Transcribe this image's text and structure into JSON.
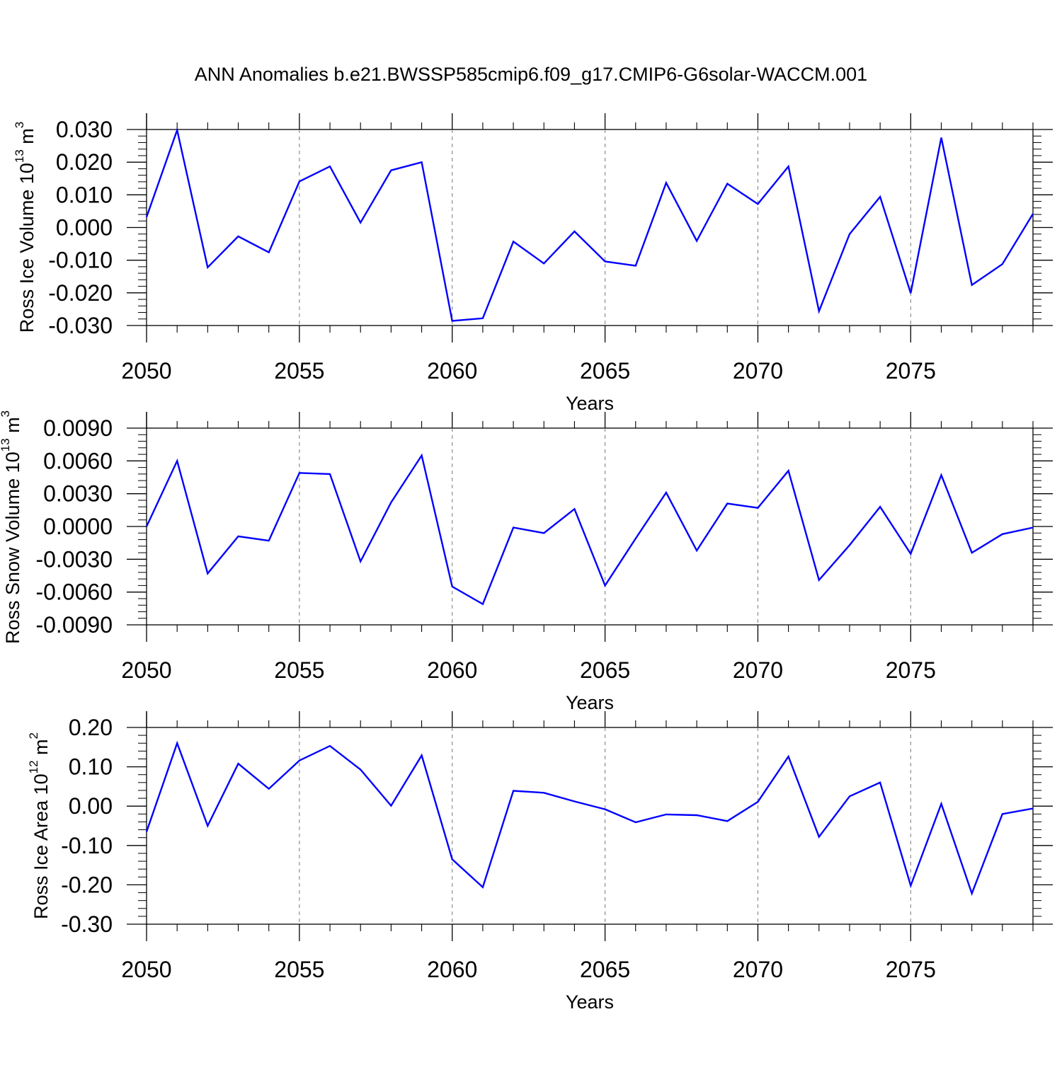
{
  "title": "ANN Anomalies b.e21.BWSSP585cmip6.f09_g17.CMIP6-G6solar-WACCM.001",
  "colors": {
    "series": "#0000ff",
    "axis": "#000000",
    "grid": "#8c8c8c"
  },
  "chart_data": [
    {
      "type": "line",
      "ylabel": "Ross Ice Volume",
      "yunit": "10",
      "yunit_exp": "13",
      "yunit_tail": " m",
      "yunit_pow": "3",
      "xlabel": "Years",
      "xlim": [
        2050,
        2079
      ],
      "ylim": [
        -0.03,
        0.03
      ],
      "ytick_values": [
        0.03,
        0.02,
        0.01,
        0.0,
        -0.01,
        -0.02,
        -0.03
      ],
      "yticks": [
        "0.030",
        "0.020",
        "0.010",
        "0.000",
        "-0.010",
        "-0.020",
        "-0.030"
      ],
      "xticks": [
        "2050",
        "2055",
        "2060",
        "2065",
        "2070",
        "2075"
      ],
      "grid": "dashed vertical at major x ticks",
      "x": [
        2050,
        2051,
        2052,
        2053,
        2054,
        2055,
        2056,
        2057,
        2058,
        2059,
        2060,
        2061,
        2062,
        2063,
        2064,
        2065,
        2066,
        2067,
        2068,
        2069,
        2070,
        2071,
        2072,
        2073,
        2074,
        2075,
        2076,
        2077,
        2078,
        2079
      ],
      "values": [
        0.0032,
        0.0298,
        -0.0122,
        -0.0027,
        -0.0076,
        0.0141,
        0.0187,
        0.0015,
        0.0175,
        0.02,
        -0.0286,
        -0.0278,
        -0.0043,
        -0.011,
        -0.0012,
        -0.0104,
        -0.0117,
        0.0137,
        -0.0041,
        0.0134,
        0.0072,
        0.0187,
        -0.0256,
        -0.002,
        0.0094,
        -0.0201,
        0.0275,
        -0.0176,
        -0.0112,
        0.0042
      ]
    },
    {
      "type": "line",
      "ylabel": "Ross Snow Volume",
      "yunit": "10",
      "yunit_exp": "13",
      "yunit_tail": " m",
      "yunit_pow": "3",
      "xlabel": "Years",
      "xlim": [
        2050,
        2079
      ],
      "ylim": [
        -0.009,
        0.009
      ],
      "ytick_values": [
        0.009,
        0.006,
        0.003,
        0.0,
        -0.003,
        -0.006,
        -0.009
      ],
      "yticks": [
        "0.0090",
        "0.0060",
        "0.0030",
        "0.0000",
        "-0.0030",
        "-0.0060",
        "-0.0090"
      ],
      "xticks": [
        "2050",
        "2055",
        "2060",
        "2065",
        "2070",
        "2075"
      ],
      "grid": "dashed vertical at major x ticks",
      "x": [
        2050,
        2051,
        2052,
        2053,
        2054,
        2055,
        2056,
        2057,
        2058,
        2059,
        2060,
        2061,
        2062,
        2063,
        2064,
        2065,
        2066,
        2067,
        2068,
        2069,
        2070,
        2071,
        2072,
        2073,
        2074,
        2075,
        2076,
        2077,
        2078,
        2079
      ],
      "values": [
        0.0,
        0.006,
        -0.0043,
        -0.0009,
        -0.0013,
        0.0049,
        0.0048,
        -0.0032,
        0.0022,
        0.0065,
        -0.0055,
        -0.0071,
        -0.0001,
        -0.0006,
        0.0016,
        -0.0054,
        -0.0011,
        0.0031,
        -0.0022,
        0.0021,
        0.0017,
        0.0051,
        -0.0049,
        -0.0017,
        0.0018,
        -0.0025,
        0.0047,
        -0.0024,
        -0.0007,
        -0.0001
      ]
    },
    {
      "type": "line",
      "ylabel": "Ross Ice Area",
      "yunit": "10",
      "yunit_exp": "12",
      "yunit_tail": " m",
      "yunit_pow": "2",
      "xlabel": "Years",
      "xlim": [
        2050,
        2079
      ],
      "ylim": [
        -0.3,
        0.2
      ],
      "ytick_values": [
        0.2,
        0.1,
        0.0,
        -0.1,
        -0.2,
        -0.3
      ],
      "yticks": [
        "0.20",
        "0.10",
        "0.00",
        "-0.10",
        "-0.20",
        "-0.30"
      ],
      "xticks": [
        "2050",
        "2055",
        "2060",
        "2065",
        "2070",
        "2075"
      ],
      "grid": "dashed vertical at major x ticks",
      "x": [
        2050,
        2051,
        2052,
        2053,
        2054,
        2055,
        2056,
        2057,
        2058,
        2059,
        2060,
        2061,
        2062,
        2063,
        2064,
        2065,
        2066,
        2067,
        2068,
        2069,
        2070,
        2071,
        2072,
        2073,
        2074,
        2075,
        2076,
        2077,
        2078,
        2079
      ],
      "values": [
        -0.065,
        0.16,
        -0.05,
        0.108,
        0.044,
        0.116,
        0.153,
        0.093,
        0.001,
        0.129,
        -0.135,
        -0.206,
        0.039,
        0.034,
        0.012,
        -0.008,
        -0.041,
        -0.021,
        -0.023,
        -0.038,
        0.011,
        0.126,
        -0.078,
        0.025,
        0.06,
        -0.202,
        0.006,
        -0.222,
        -0.02,
        -0.006
      ]
    }
  ]
}
